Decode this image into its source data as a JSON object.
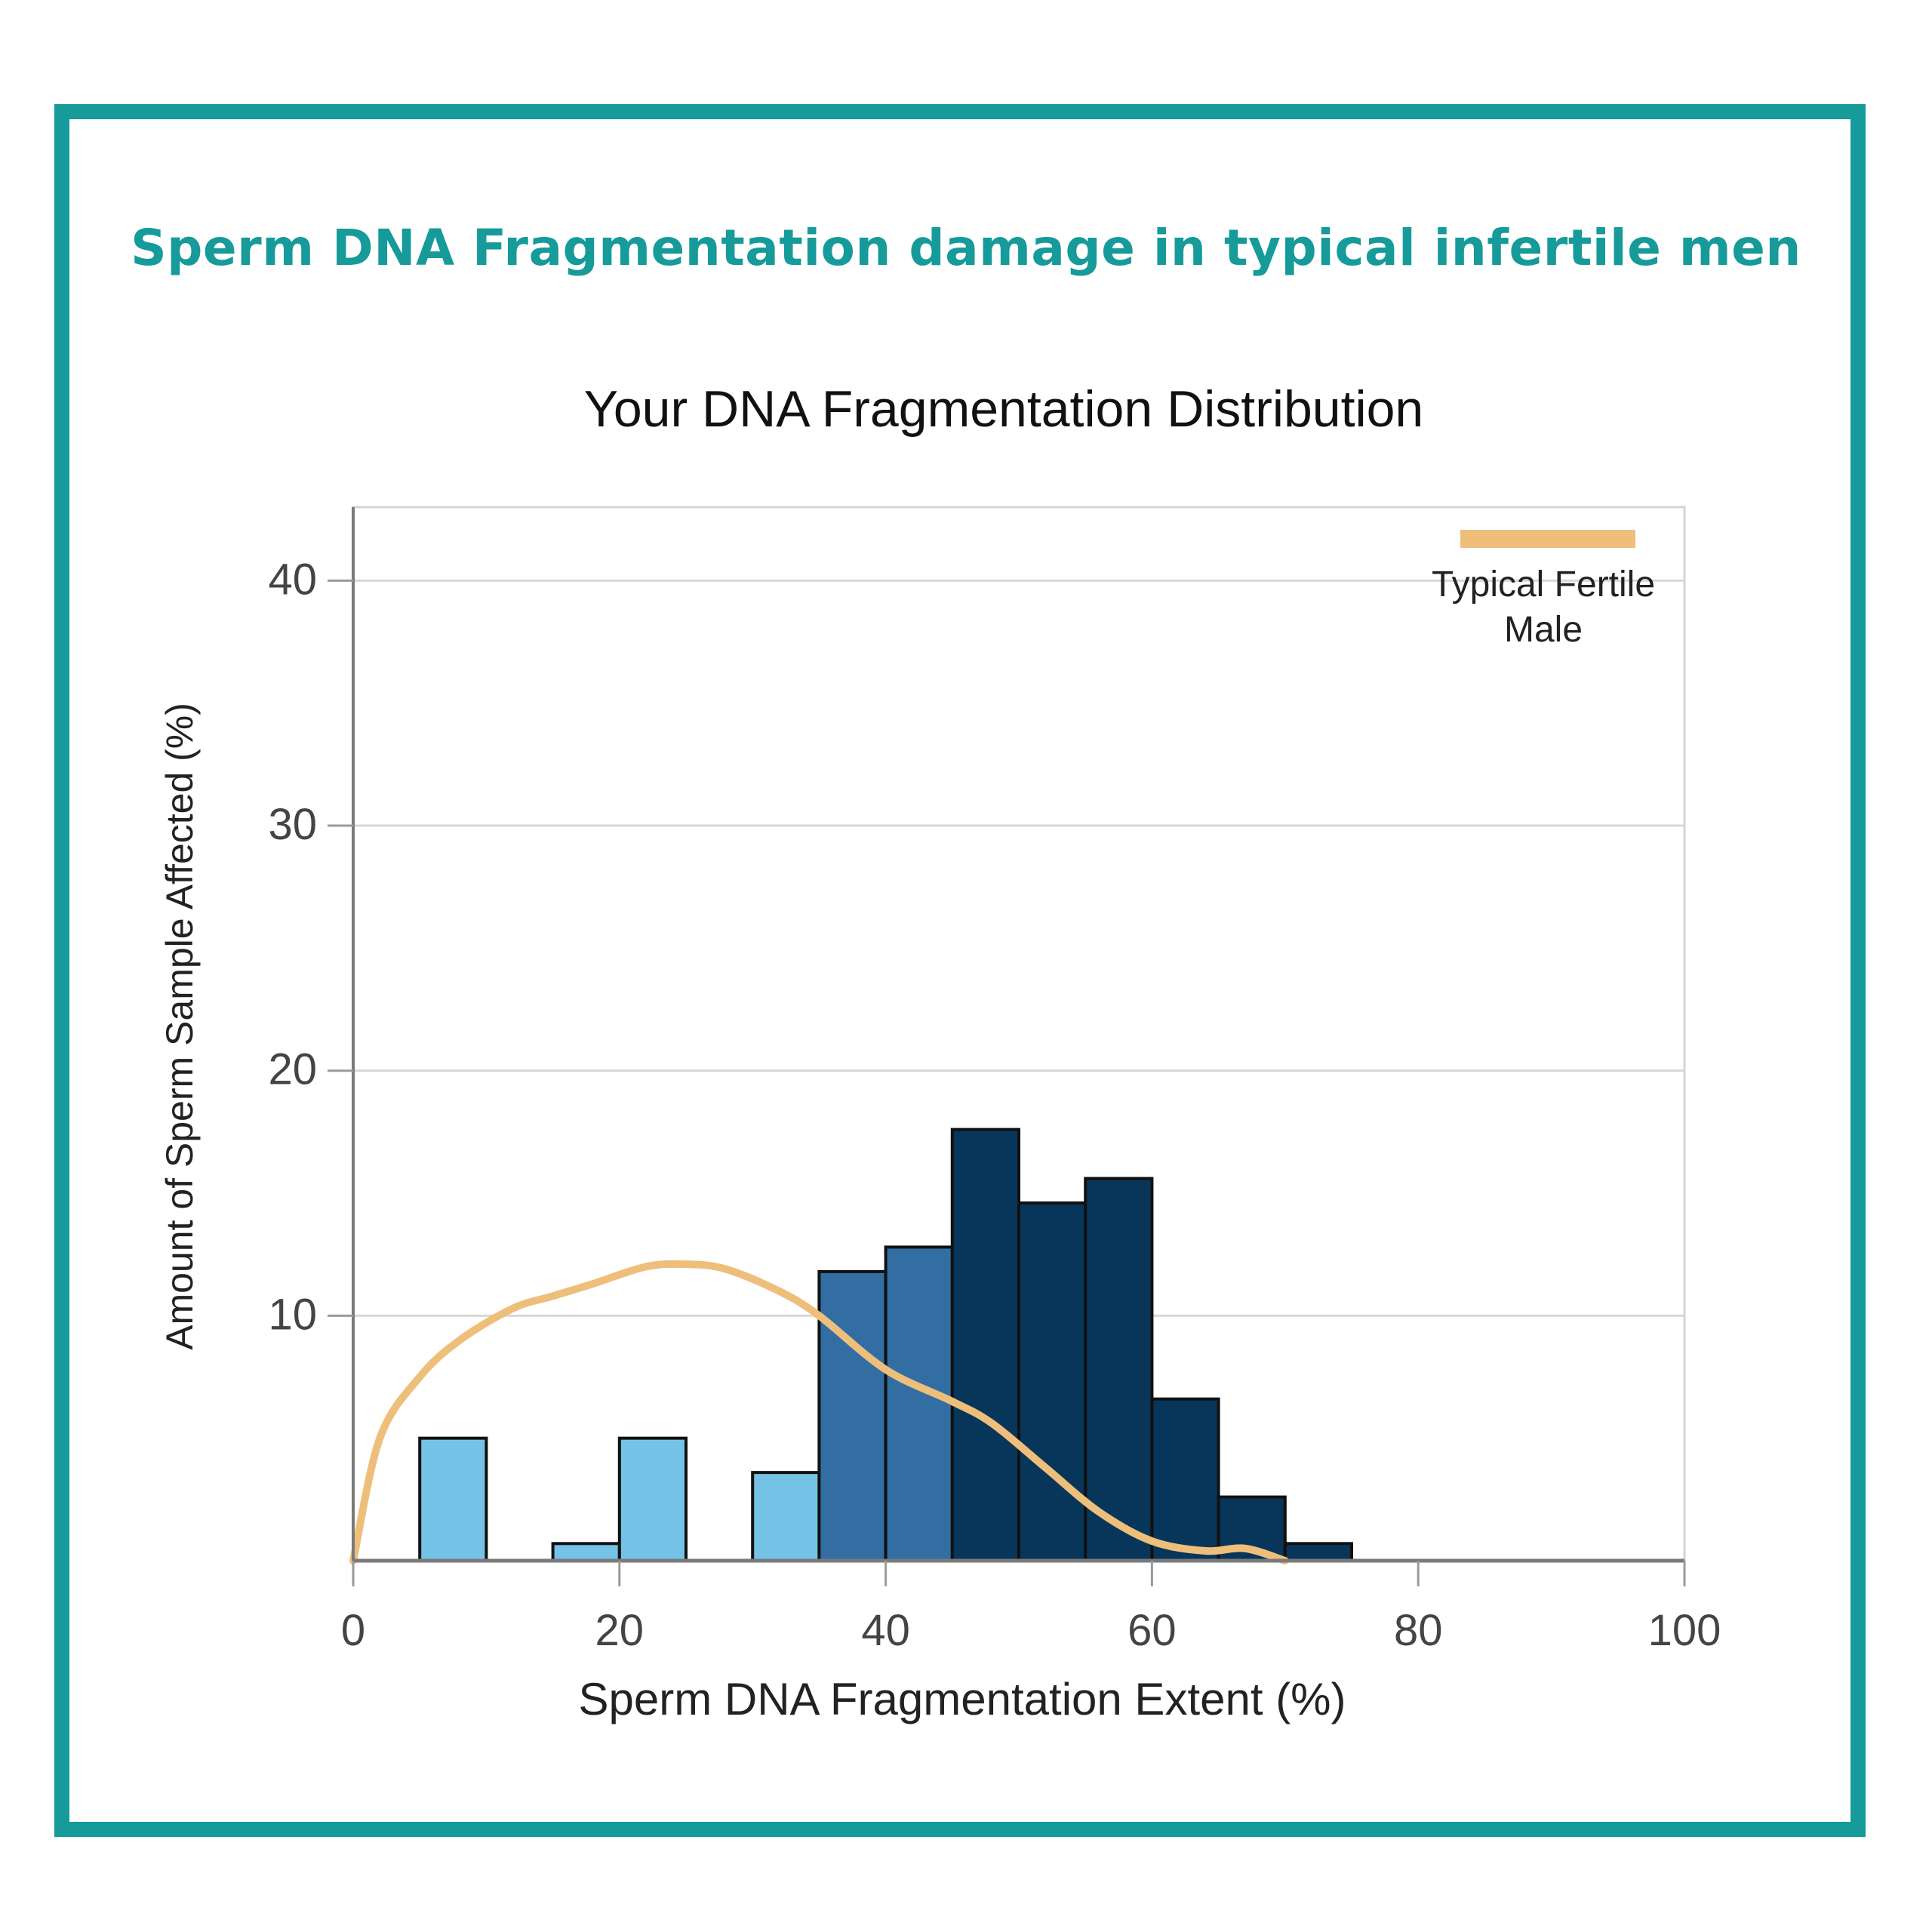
{
  "page": {
    "headline": "Sperm DNA Fragmentation damage in typical infertile men",
    "frame_color": "#169a9a"
  },
  "chart_data": {
    "type": "bar",
    "title": "Your DNA Fragmentation Distribution",
    "xlabel": "Sperm DNA Fragmentation Extent (%)",
    "ylabel": "Amount of Sperm Sample Affected (%)",
    "xlim": [
      0,
      100
    ],
    "ylim": [
      0,
      43
    ],
    "x_ticks": [
      "0",
      "20",
      "40",
      "60",
      "80",
      "100"
    ],
    "y_ticks": [
      "10",
      "20",
      "30",
      "40"
    ],
    "grid": true,
    "bin_width": 5,
    "bins": [
      {
        "start": 5,
        "value": 5,
        "color": "#74c3e6"
      },
      {
        "start": 15,
        "value": 0.7,
        "color": "#74c3e6"
      },
      {
        "start": 20,
        "value": 5,
        "color": "#74c3e6"
      },
      {
        "start": 30,
        "value": 3.6,
        "color": "#74c3e6"
      },
      {
        "start": 35,
        "value": 11.8,
        "color": "#336ea3"
      },
      {
        "start": 40,
        "value": 12.8,
        "color": "#336ea3"
      },
      {
        "start": 45,
        "value": 17.6,
        "color": "#08365a"
      },
      {
        "start": 50,
        "value": 14.6,
        "color": "#08365a"
      },
      {
        "start": 55,
        "value": 15.6,
        "color": "#08365a"
      },
      {
        "start": 60,
        "value": 6.6,
        "color": "#08365a"
      },
      {
        "start": 65,
        "value": 2.6,
        "color": "#08365a"
      },
      {
        "start": 70,
        "value": 0.7,
        "color": "#08365a"
      }
    ],
    "series": [
      {
        "name": "Typical Fertile Male",
        "type": "line",
        "color": "#eebf7a",
        "x": [
          0,
          2,
          5,
          8,
          12,
          15,
          18,
          22,
          25,
          28,
          32,
          35,
          40,
          45,
          48,
          52,
          56,
          60,
          64,
          67,
          70
        ],
        "y": [
          0,
          5,
          7.5,
          9,
          10.3,
          10.8,
          11.3,
          12,
          12.1,
          11.9,
          11,
          10,
          7.8,
          6.5,
          5.6,
          3.8,
          2,
          0.8,
          0.4,
          0.5,
          0
        ]
      }
    ],
    "legend": {
      "position": "top-right",
      "labels": [
        "Typical Fertile",
        "Male"
      ]
    }
  }
}
